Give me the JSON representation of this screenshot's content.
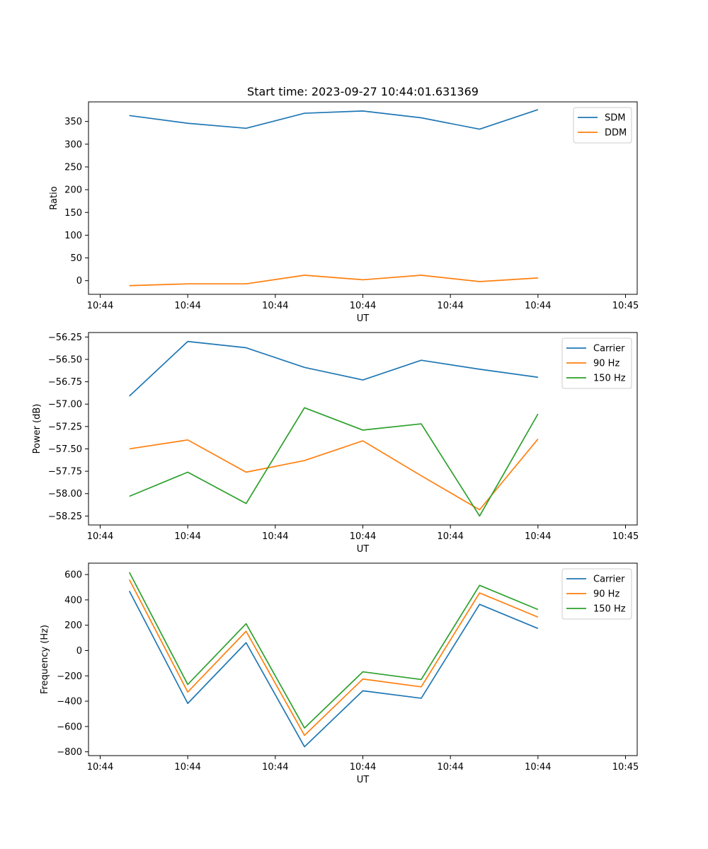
{
  "chart_data": [
    {
      "type": "line",
      "title": "Start time: 2023-09-27 10:44:01.631369",
      "xlabel": "UT",
      "ylabel": "Ratio",
      "x": [
        0.5,
        1.5,
        2.5,
        3.5,
        4.5,
        5.5,
        6.5,
        7.5
      ],
      "xlim": [
        -0.2,
        9.2
      ],
      "x_ticks": [
        0,
        1.5,
        3,
        4.5,
        6,
        7.5,
        9
      ],
      "x_tick_labels": [
        "10:44",
        "10:44",
        "10:44",
        "10:44",
        "10:44",
        "10:44",
        "10:45"
      ],
      "ylim": [
        -30,
        393
      ],
      "y_ticks": [
        0,
        50,
        100,
        150,
        200,
        250,
        300,
        350
      ],
      "y_tick_labels": [
        "0",
        "50",
        "100",
        "150",
        "200",
        "250",
        "300",
        "350"
      ],
      "legend": "top-right",
      "series": [
        {
          "name": "SDM",
          "color": "#1f77b4",
          "values": [
            363,
            346,
            335,
            368,
            373,
            358,
            333,
            376
          ]
        },
        {
          "name": "DDM",
          "color": "#ff7f0e",
          "values": [
            -11,
            -7,
            -7,
            12,
            2,
            12,
            -2,
            6
          ]
        }
      ]
    },
    {
      "type": "line",
      "title": "",
      "xlabel": "UT",
      "ylabel": "Power (dB)",
      "x": [
        0.5,
        1.5,
        2.5,
        3.5,
        4.5,
        5.5,
        6.5,
        7.5
      ],
      "xlim": [
        -0.2,
        9.2
      ],
      "x_ticks": [
        0,
        1.5,
        3,
        4.5,
        6,
        7.5,
        9
      ],
      "x_tick_labels": [
        "10:44",
        "10:44",
        "10:44",
        "10:44",
        "10:44",
        "10:44",
        "10:45"
      ],
      "ylim": [
        -58.35,
        -56.2
      ],
      "y_ticks": [
        -58.25,
        -58.0,
        -57.75,
        -57.5,
        -57.25,
        -57.0,
        -56.75,
        -56.5,
        -56.25
      ],
      "y_tick_labels": [
        "−58.25",
        "−58.00",
        "−57.75",
        "−57.50",
        "−57.25",
        "−57.00",
        "−56.75",
        "−56.50",
        "−56.25"
      ],
      "legend": "top-right",
      "series": [
        {
          "name": "Carrier",
          "color": "#1f77b4",
          "values": [
            -56.91,
            -56.3,
            -56.37,
            -56.59,
            -56.73,
            -56.51,
            -56.61,
            -56.7
          ]
        },
        {
          "name": "90 Hz",
          "color": "#ff7f0e",
          "values": [
            -57.5,
            -57.4,
            -57.76,
            -57.63,
            -57.41,
            -57.8,
            -58.18,
            -57.39
          ]
        },
        {
          "name": "150 Hz",
          "color": "#2ca02c",
          "values": [
            -58.03,
            -57.76,
            -58.11,
            -57.04,
            -57.29,
            -57.22,
            -58.25,
            -57.11
          ]
        }
      ]
    },
    {
      "type": "line",
      "title": "",
      "xlabel": "UT",
      "ylabel": "Frequency (Hz)",
      "x": [
        0.5,
        1.5,
        2.5,
        3.5,
        4.5,
        5.5,
        6.5,
        7.5
      ],
      "xlim": [
        -0.2,
        9.2
      ],
      "x_ticks": [
        0,
        1.5,
        3,
        4.5,
        6,
        7.5,
        9
      ],
      "x_tick_labels": [
        "10:44",
        "10:44",
        "10:44",
        "10:44",
        "10:44",
        "10:44",
        "10:45"
      ],
      "ylim": [
        -830,
        690
      ],
      "y_ticks": [
        -800,
        -600,
        -400,
        -200,
        0,
        200,
        400,
        600
      ],
      "y_tick_labels": [
        "−800",
        "−600",
        "−400",
        "−200",
        "0",
        "200",
        "400",
        "600"
      ],
      "legend": "top-right",
      "series": [
        {
          "name": "Carrier",
          "color": "#1f77b4",
          "values": [
            470,
            -418,
            62,
            -760,
            -318,
            -377,
            365,
            174
          ]
        },
        {
          "name": "90 Hz",
          "color": "#ff7f0e",
          "values": [
            560,
            -328,
            152,
            -670,
            -225,
            -287,
            455,
            264
          ]
        },
        {
          "name": "150 Hz",
          "color": "#2ca02c",
          "values": [
            618,
            -268,
            212,
            -612,
            -168,
            -229,
            515,
            324
          ]
        }
      ]
    }
  ]
}
